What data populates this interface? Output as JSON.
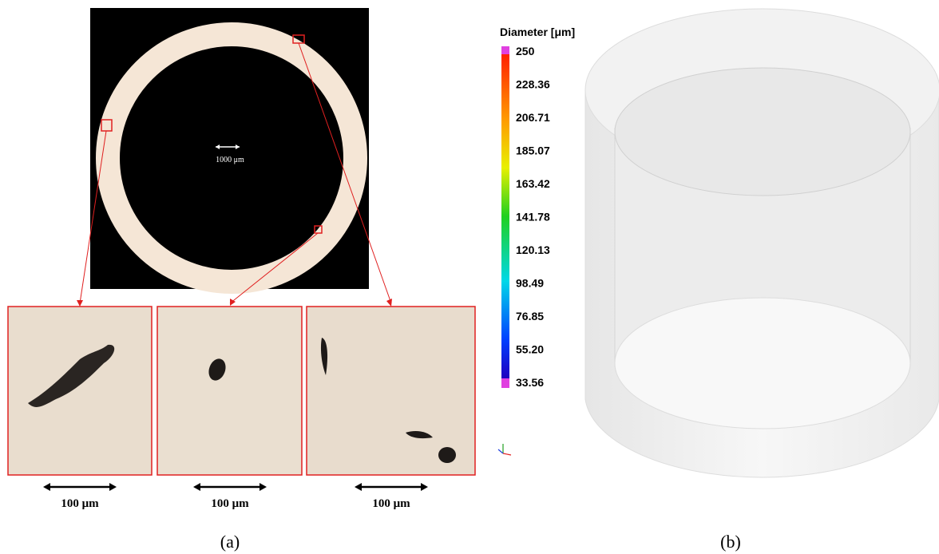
{
  "panel_a": {
    "main_scale_bar": "1000 μm",
    "insets": [
      {
        "scale_bar": "100 μm"
      },
      {
        "scale_bar": "100 μm"
      },
      {
        "scale_bar": "100 μm"
      }
    ],
    "label": "(a)"
  },
  "panel_b": {
    "colorbar_title": "Diameter [μm]",
    "colorbar_ticks": [
      "250",
      "228.36",
      "206.71",
      "185.07",
      "163.42",
      "141.78",
      "120.13",
      "98.49",
      "76.85",
      "55.20",
      "33.56"
    ],
    "label": "(b)"
  }
}
